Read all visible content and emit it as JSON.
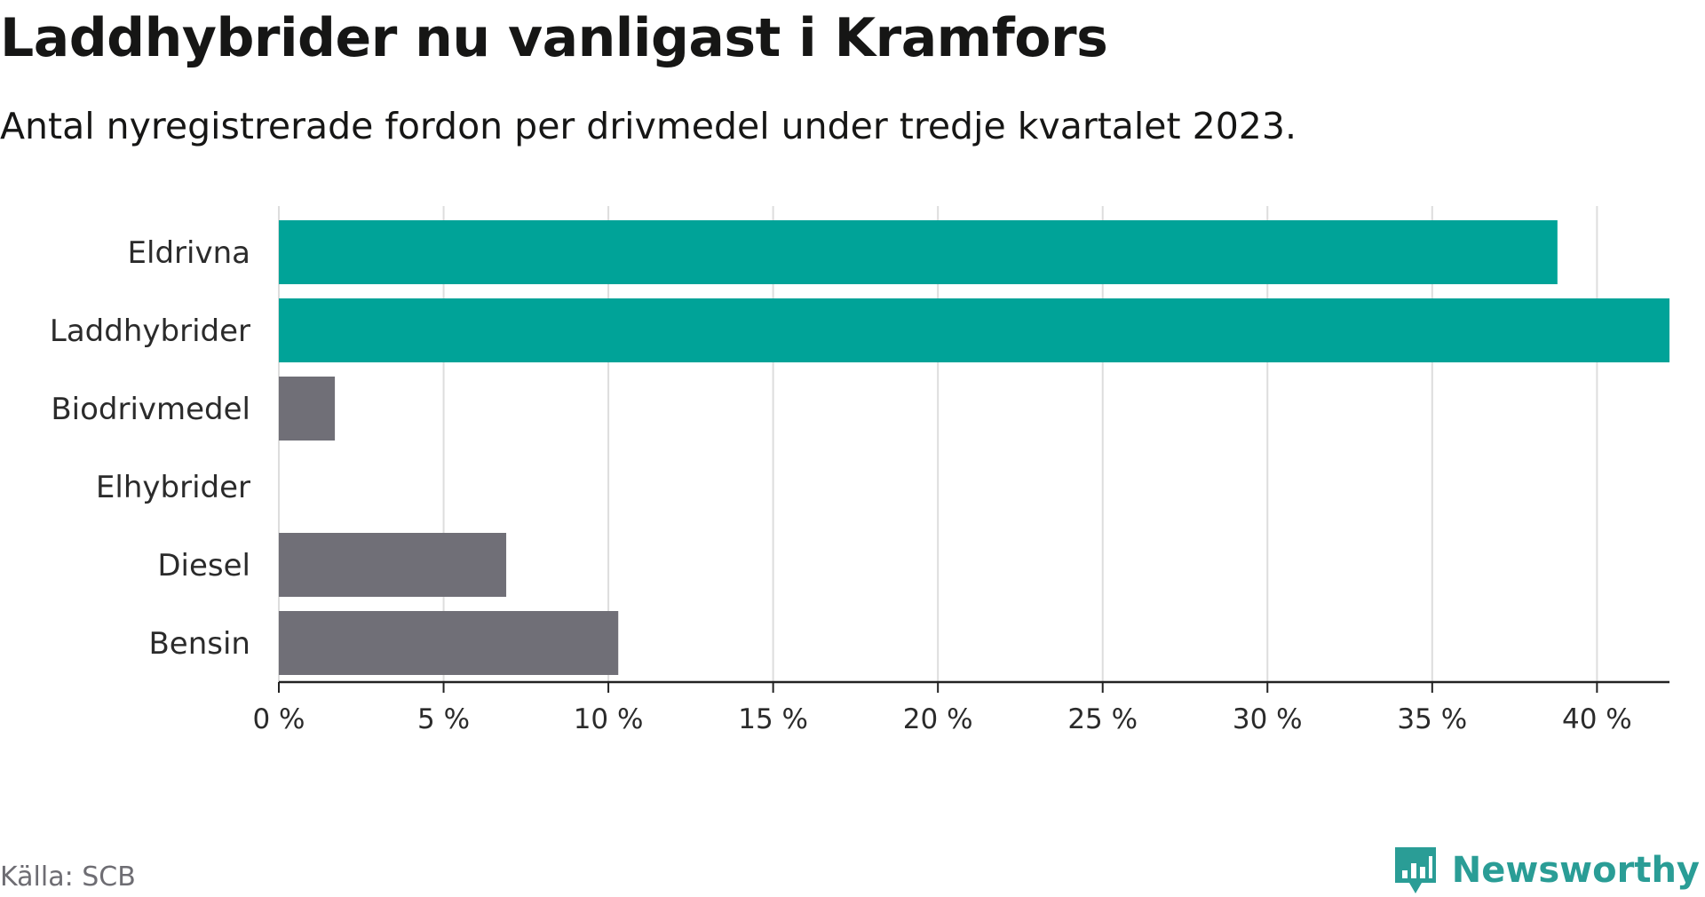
{
  "header": {
    "title": "Laddhybrider nu vanligast i Kramfors",
    "subtitle": "Antal nyregistrerade fordon per drivmedel under tredje kvartalet 2023."
  },
  "footer": {
    "source": "Källa: SCB",
    "brand": "Newsworthy",
    "brand_icon": "newsworthy-logo-icon"
  },
  "colors": {
    "highlight": "#00a398",
    "default": "#706f77",
    "gridline": "#dddddd",
    "axis": "#222222",
    "brand": "#2a9d96"
  },
  "chart_data": {
    "type": "bar",
    "orientation": "horizontal",
    "title": "Laddhybrider nu vanligast i Kramfors",
    "subtitle": "Antal nyregistrerade fordon per drivmedel under tredje kvartalet 2023.",
    "xlabel": "",
    "ylabel": "",
    "unit": "%",
    "categories": [
      "Eldrivna",
      "Laddhybrider",
      "Biodrivmedel",
      "Elhybrider",
      "Diesel",
      "Bensin"
    ],
    "values": [
      38.8,
      42.2,
      1.7,
      0,
      6.9,
      10.3
    ],
    "highlighted": [
      true,
      true,
      false,
      false,
      false,
      false
    ],
    "xlim": [
      0,
      42.2
    ],
    "ticks": [
      0,
      5,
      10,
      15,
      20,
      25,
      30,
      35,
      40
    ],
    "tick_labels": [
      "0 %",
      "5 %",
      "10 %",
      "15 %",
      "20 %",
      "25 %",
      "30 %",
      "35 %",
      "40 %"
    ],
    "grid": true
  }
}
